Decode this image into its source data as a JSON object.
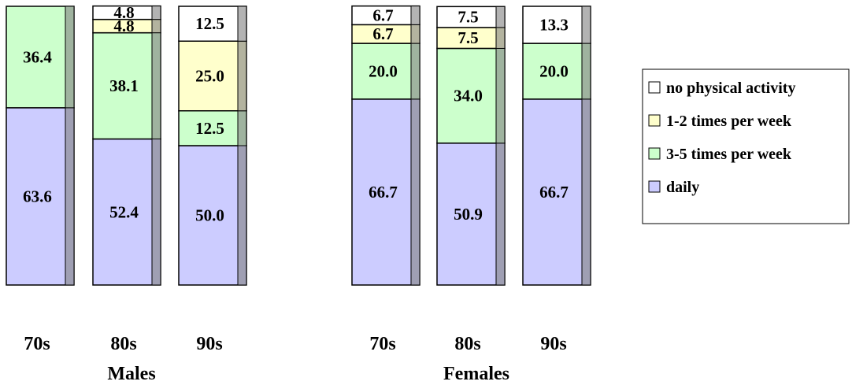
{
  "chart_data": {
    "type": "bar",
    "stacked": true,
    "percent_stacked": true,
    "groups": [
      {
        "name": "Males",
        "categories": [
          "70s",
          "80s",
          "90s"
        ],
        "series": [
          {
            "name": "daily",
            "values": [
              63.6,
              52.4,
              50.0
            ]
          },
          {
            "name": "3-5 times per week",
            "values": [
              36.4,
              38.1,
              12.5
            ]
          },
          {
            "name": "1-2 times per week",
            "values": [
              null,
              4.8,
              25.0
            ]
          },
          {
            "name": "no physical activity",
            "values": [
              null,
              4.8,
              12.5
            ]
          }
        ]
      },
      {
        "name": "Females",
        "categories": [
          "70s",
          "80s",
          "90s"
        ],
        "series": [
          {
            "name": "daily",
            "values": [
              66.7,
              50.9,
              66.7
            ]
          },
          {
            "name": "3-5 times per week",
            "values": [
              20.0,
              34.0,
              20.0
            ]
          },
          {
            "name": "1-2 times per week",
            "values": [
              6.7,
              7.5,
              null
            ]
          },
          {
            "name": "no physical activity",
            "values": [
              6.7,
              7.5,
              13.3
            ]
          }
        ]
      }
    ],
    "legend": {
      "placement": "right",
      "entries": [
        "no physical activity",
        "1-2 times per week",
        "3-5 times per week",
        "daily"
      ]
    },
    "colors": {
      "daily": "#ccccff",
      "3-5 times per week": "#ccffcc",
      "1-2 times per week": "#ffffcc",
      "no physical activity": "#ffffff",
      "side_shade": "#808080"
    },
    "ylim": [
      0,
      100
    ],
    "grid": false
  }
}
